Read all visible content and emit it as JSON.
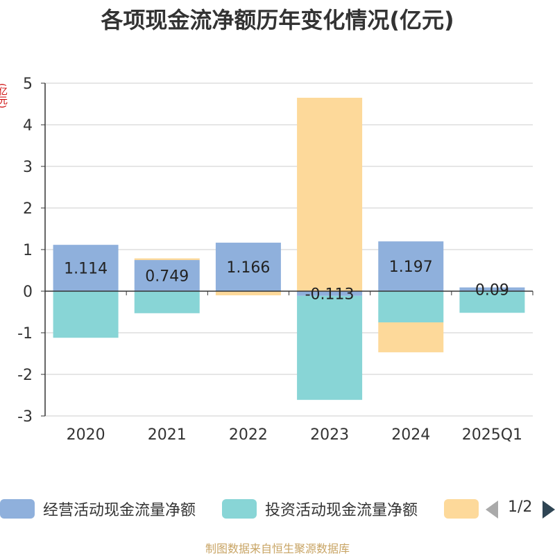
{
  "title": "各项现金流净额历年变化情况(亿元)",
  "unit_label": "(亿元)",
  "source": "制图数据来自恒生聚源数据库",
  "legend": {
    "items": [
      {
        "label": "经营活动现金流量净额",
        "color": "#8fb0dc"
      },
      {
        "label": "投资活动现金流量净额",
        "color": "#88d5d6"
      },
      {
        "label": "",
        "color": "#fdd99a"
      }
    ],
    "pager": "1/2"
  },
  "chart_data": {
    "type": "bar",
    "stacked": true,
    "categories": [
      "2020",
      "2021",
      "2022",
      "2023",
      "2024",
      "2025Q1"
    ],
    "ylim": [
      -3,
      5
    ],
    "yticks": [
      -3,
      -2,
      -1,
      0,
      1,
      2,
      3,
      4,
      5
    ],
    "grid": true,
    "legend_position": "bottom",
    "series": [
      {
        "name": "经营活动现金流量净额",
        "color": "#8fb0dc",
        "values": [
          1.114,
          0.749,
          1.166,
          -0.113,
          1.197,
          0.09
        ],
        "labels": [
          "1.114",
          "0.749",
          "1.166",
          "-0.113",
          "1.197",
          "0.09"
        ]
      },
      {
        "color": "#88d5d6",
        "values": [
          -1.12,
          -0.53,
          0,
          -2.5,
          -0.75,
          -0.52
        ]
      },
      {
        "color": "#fdd99a",
        "values": [
          0,
          0.04,
          -0.1,
          4.65,
          -0.72,
          0
        ]
      }
    ]
  }
}
